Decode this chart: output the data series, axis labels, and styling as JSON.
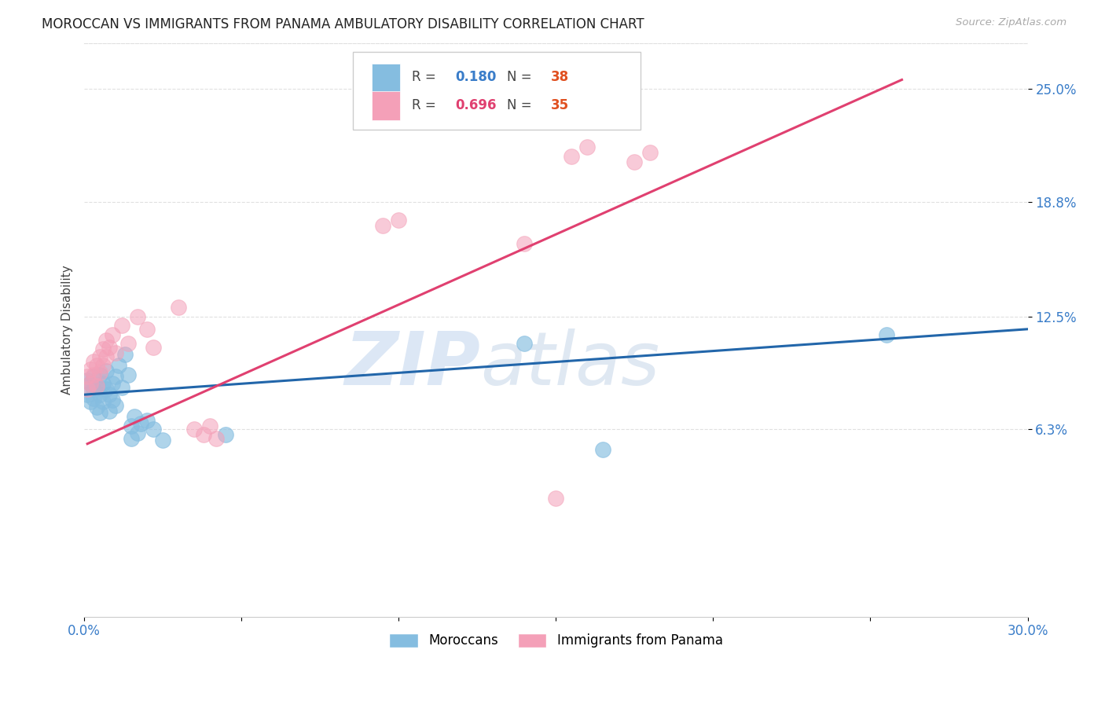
{
  "title": "MOROCCAN VS IMMIGRANTS FROM PANAMA AMBULATORY DISABILITY CORRELATION CHART",
  "source": "Source: ZipAtlas.com",
  "ylabel": "Ambulatory Disability",
  "ytick_labels": [
    "6.3%",
    "12.5%",
    "18.8%",
    "25.0%"
  ],
  "ytick_values": [
    0.063,
    0.125,
    0.188,
    0.25
  ],
  "xmin": 0.0,
  "xmax": 0.3,
  "ymin": -0.04,
  "ymax": 0.275,
  "color_blue": "#85bde0",
  "color_pink": "#f4a0b8",
  "blue_line_color": "#2266aa",
  "pink_line_color": "#e04070",
  "blue_scatter": [
    [
      0.001,
      0.09
    ],
    [
      0.001,
      0.082
    ],
    [
      0.002,
      0.088
    ],
    [
      0.002,
      0.078
    ],
    [
      0.003,
      0.092
    ],
    [
      0.003,
      0.085
    ],
    [
      0.003,
      0.08
    ],
    [
      0.004,
      0.087
    ],
    [
      0.004,
      0.075
    ],
    [
      0.005,
      0.093
    ],
    [
      0.005,
      0.082
    ],
    [
      0.005,
      0.072
    ],
    [
      0.006,
      0.088
    ],
    [
      0.006,
      0.078
    ],
    [
      0.007,
      0.095
    ],
    [
      0.007,
      0.085
    ],
    [
      0.008,
      0.082
    ],
    [
      0.008,
      0.073
    ],
    [
      0.009,
      0.088
    ],
    [
      0.009,
      0.079
    ],
    [
      0.01,
      0.092
    ],
    [
      0.01,
      0.076
    ],
    [
      0.011,
      0.098
    ],
    [
      0.012,
      0.086
    ],
    [
      0.013,
      0.104
    ],
    [
      0.014,
      0.093
    ],
    [
      0.015,
      0.065
    ],
    [
      0.015,
      0.058
    ],
    [
      0.016,
      0.07
    ],
    [
      0.017,
      0.061
    ],
    [
      0.018,
      0.066
    ],
    [
      0.02,
      0.068
    ],
    [
      0.022,
      0.063
    ],
    [
      0.025,
      0.057
    ],
    [
      0.14,
      0.11
    ],
    [
      0.045,
      0.06
    ],
    [
      0.165,
      0.052
    ],
    [
      0.255,
      0.115
    ]
  ],
  "pink_scatter": [
    [
      0.001,
      0.092
    ],
    [
      0.001,
      0.085
    ],
    [
      0.002,
      0.096
    ],
    [
      0.002,
      0.088
    ],
    [
      0.003,
      0.1
    ],
    [
      0.003,
      0.093
    ],
    [
      0.004,
      0.098
    ],
    [
      0.004,
      0.087
    ],
    [
      0.005,
      0.103
    ],
    [
      0.005,
      0.094
    ],
    [
      0.006,
      0.107
    ],
    [
      0.006,
      0.098
    ],
    [
      0.007,
      0.112
    ],
    [
      0.007,
      0.103
    ],
    [
      0.008,
      0.108
    ],
    [
      0.009,
      0.115
    ],
    [
      0.01,
      0.105
    ],
    [
      0.012,
      0.12
    ],
    [
      0.014,
      0.11
    ],
    [
      0.017,
      0.125
    ],
    [
      0.02,
      0.118
    ],
    [
      0.022,
      0.108
    ],
    [
      0.03,
      0.13
    ],
    [
      0.035,
      0.063
    ],
    [
      0.038,
      0.06
    ],
    [
      0.04,
      0.065
    ],
    [
      0.042,
      0.058
    ],
    [
      0.16,
      0.218
    ],
    [
      0.175,
      0.21
    ],
    [
      0.14,
      0.165
    ],
    [
      0.095,
      0.175
    ],
    [
      0.1,
      0.178
    ],
    [
      0.155,
      0.213
    ],
    [
      0.18,
      0.215
    ],
    [
      0.15,
      0.025
    ]
  ],
  "blue_line_x": [
    0.0,
    0.3
  ],
  "blue_line_y": [
    0.082,
    0.118
  ],
  "pink_line_x": [
    0.001,
    0.26
  ],
  "pink_line_y": [
    0.055,
    0.255
  ],
  "watermark_zip": "ZIP",
  "watermark_atlas": "atlas",
  "background_color": "#ffffff",
  "grid_color": "#e0e0e0",
  "legend_blue_r": "0.180",
  "legend_blue_n": "38",
  "legend_pink_r": "0.696",
  "legend_pink_n": "35"
}
